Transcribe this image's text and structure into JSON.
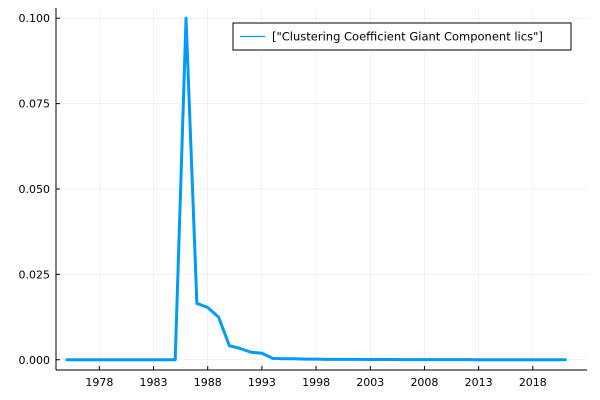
{
  "chart_data": {
    "type": "line",
    "title": "",
    "xlabel": "",
    "ylabel": "",
    "xlim": [
      1974,
      2023
    ],
    "ylim": [
      -0.003,
      0.103
    ],
    "x_ticks": [
      1978,
      1983,
      1988,
      1993,
      1998,
      2003,
      2008,
      2013,
      2018
    ],
    "y_ticks": [
      0.0,
      0.025,
      0.05,
      0.075,
      0.1
    ],
    "x_tick_labels": [
      "1978",
      "1983",
      "1988",
      "1993",
      "1998",
      "2003",
      "2008",
      "2013",
      "2018"
    ],
    "y_tick_labels": [
      "0.000",
      "0.025",
      "0.050",
      "0.075",
      "0.100"
    ],
    "grid": true,
    "legend_position": "top-right",
    "series": [
      {
        "name": "[\"Clustering Coefficient Giant Component lics\"]",
        "color": "#009AFA",
        "x": [
          1975,
          1976,
          1977,
          1978,
          1979,
          1980,
          1981,
          1982,
          1983,
          1984,
          1985,
          1986,
          1987,
          1988,
          1989,
          1990,
          1991,
          1992,
          1993,
          1994,
          1995,
          1996,
          1997,
          1998,
          1999,
          2000,
          2001,
          2002,
          2003,
          2004,
          2005,
          2006,
          2007,
          2008,
          2009,
          2010,
          2011,
          2012,
          2013,
          2014,
          2015,
          2016,
          2017,
          2018,
          2019,
          2020,
          2021
        ],
        "values": [
          0,
          0,
          0,
          0,
          0,
          0,
          0,
          0,
          0,
          0,
          0,
          0.1,
          0.0165,
          0.0153,
          0.0125,
          0.0041,
          0.0033,
          0.0022,
          0.0019,
          0.0004,
          0.0003,
          0.0003,
          0.0002,
          0.0002,
          0.0001,
          0.0001,
          0.0001,
          0.0001,
          8e-05,
          7e-05,
          6e-05,
          5e-05,
          5e-05,
          4e-05,
          4e-05,
          3e-05,
          3e-05,
          3e-05,
          2e-05,
          2e-05,
          2e-05,
          2e-05,
          2e-05,
          2e-05,
          1e-05,
          1e-05,
          1e-05
        ]
      }
    ]
  }
}
